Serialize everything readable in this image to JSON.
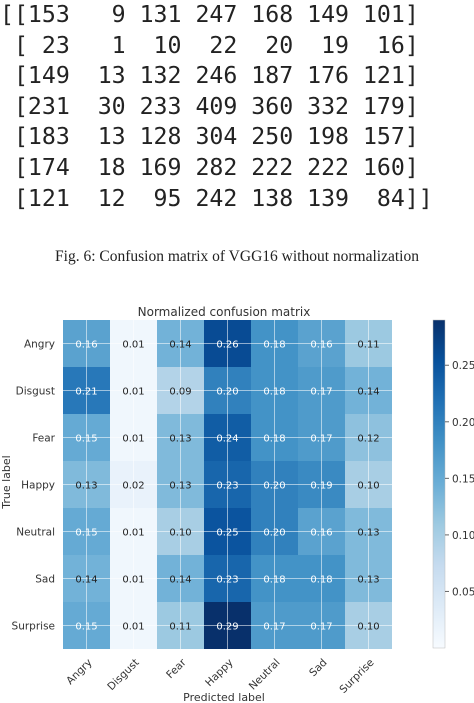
{
  "raw_matrix_lines": [
    "[[153   9 131 247 168 149 101]",
    " [ 23   1  10  22  20  19  16]",
    " [149  13 132 246 187 176 121]",
    " [231  30 233 409 360 332 179]",
    " [183  13 128 304 250 198 157]",
    " [174  18 169 282 222 222 160]",
    " [121  12  95 242 138 139  84]]"
  ],
  "caption": "Fig. 6: Confusion matrix of VGG16 without normalization",
  "chart_data": {
    "type": "heatmap",
    "title": "Normalized confusion matrix",
    "xlabel": "Predicted label",
    "ylabel": "True label",
    "x_categories": [
      "Angry",
      "Disgust",
      "Fear",
      "Happy",
      "Neutral",
      "Sad",
      "Surprise"
    ],
    "y_categories": [
      "Angry",
      "Disgust",
      "Fear",
      "Happy",
      "Neutral",
      "Sad",
      "Surprise"
    ],
    "values": [
      [
        0.16,
        0.01,
        0.14,
        0.26,
        0.18,
        0.16,
        0.11
      ],
      [
        0.21,
        0.01,
        0.09,
        0.2,
        0.18,
        0.17,
        0.14
      ],
      [
        0.15,
        0.01,
        0.13,
        0.24,
        0.18,
        0.17,
        0.12
      ],
      [
        0.13,
        0.02,
        0.13,
        0.23,
        0.2,
        0.19,
        0.1
      ],
      [
        0.15,
        0.01,
        0.1,
        0.25,
        0.2,
        0.16,
        0.13
      ],
      [
        0.14,
        0.01,
        0.14,
        0.23,
        0.18,
        0.18,
        0.13
      ],
      [
        0.15,
        0.01,
        0.11,
        0.29,
        0.17,
        0.17,
        0.1
      ]
    ],
    "colorbar": {
      "range": [
        0.0,
        0.29
      ],
      "ticks": [
        "0.05",
        "0.10",
        "0.15",
        "0.20",
        "0.25"
      ],
      "colormap": "Blues"
    }
  }
}
